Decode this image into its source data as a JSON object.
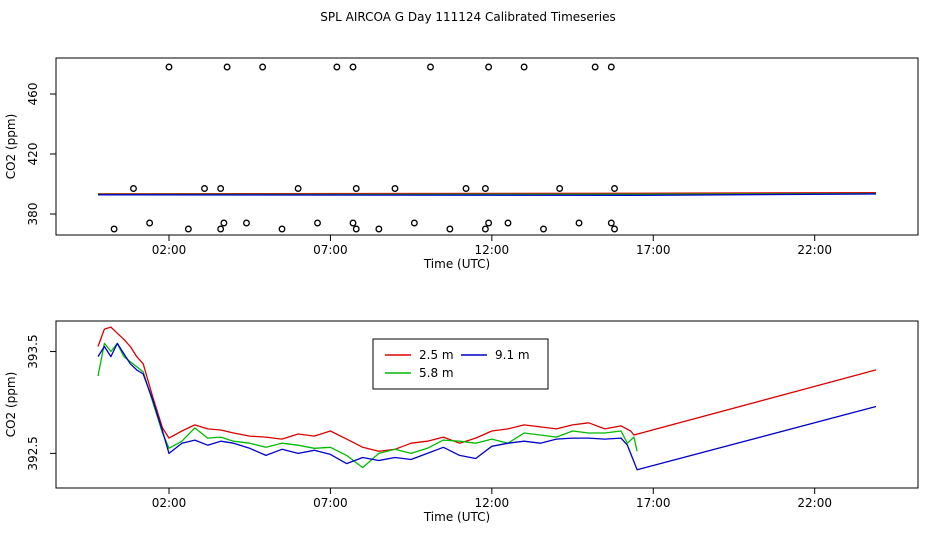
{
  "page_title": "SPL AIRCOA G  Day 111124  Calibrated Timeseries",
  "chart_data": [
    {
      "type": "scatter",
      "title": "",
      "xlabel": "Time (UTC)",
      "ylabel": "CO2 (ppm)",
      "xlim": [
        -1.5,
        25.2
      ],
      "ylim": [
        366,
        484
      ],
      "x_ticks": [
        2,
        7,
        12,
        17,
        22
      ],
      "x_tick_labels": [
        "02:00",
        "07:00",
        "12:00",
        "17:00",
        "22:00"
      ],
      "y_ticks": [
        380,
        420,
        460
      ],
      "y_tick_labels": [
        "380",
        "420",
        "460"
      ],
      "flat_series": [
        {
          "name": "2.5 m",
          "color": "#dd0000",
          "x": [
            -0.2,
            16.5,
            23.9
          ],
          "y": [
            393.5,
            393.8,
            394.2
          ]
        },
        {
          "name": "5.8 m",
          "color": "#00bb00",
          "x": [
            -0.2,
            16.5,
            23.9
          ],
          "y": [
            393.0,
            393.1,
            393.6
          ]
        },
        {
          "name": "9.1 m",
          "color": "#0000cc",
          "x": [
            -0.2,
            16.5,
            23.9
          ],
          "y": [
            392.8,
            392.5,
            393.4
          ]
        }
      ],
      "points": [
        {
          "x": 0.3,
          "y": 370
        },
        {
          "x": 0.9,
          "y": 397
        },
        {
          "x": 1.4,
          "y": 374
        },
        {
          "x": 2.0,
          "y": 478
        },
        {
          "x": 2.6,
          "y": 370
        },
        {
          "x": 3.1,
          "y": 397
        },
        {
          "x": 3.6,
          "y": 370
        },
        {
          "x": 3.6,
          "y": 397
        },
        {
          "x": 3.7,
          "y": 374
        },
        {
          "x": 3.8,
          "y": 478
        },
        {
          "x": 4.4,
          "y": 374
        },
        {
          "x": 4.9,
          "y": 478
        },
        {
          "x": 5.5,
          "y": 370
        },
        {
          "x": 6.0,
          "y": 397
        },
        {
          "x": 6.6,
          "y": 374
        },
        {
          "x": 7.2,
          "y": 478
        },
        {
          "x": 7.7,
          "y": 374
        },
        {
          "x": 7.8,
          "y": 370
        },
        {
          "x": 7.7,
          "y": 478
        },
        {
          "x": 7.8,
          "y": 397
        },
        {
          "x": 8.5,
          "y": 370
        },
        {
          "x": 9.0,
          "y": 397
        },
        {
          "x": 9.6,
          "y": 374
        },
        {
          "x": 10.1,
          "y": 478
        },
        {
          "x": 10.7,
          "y": 370
        },
        {
          "x": 11.2,
          "y": 397
        },
        {
          "x": 11.8,
          "y": 370
        },
        {
          "x": 11.8,
          "y": 397
        },
        {
          "x": 11.9,
          "y": 374
        },
        {
          "x": 11.9,
          "y": 478
        },
        {
          "x": 12.5,
          "y": 374
        },
        {
          "x": 13.0,
          "y": 478
        },
        {
          "x": 13.6,
          "y": 370
        },
        {
          "x": 14.1,
          "y": 397
        },
        {
          "x": 14.7,
          "y": 374
        },
        {
          "x": 15.2,
          "y": 478
        },
        {
          "x": 15.7,
          "y": 374
        },
        {
          "x": 15.8,
          "y": 370
        },
        {
          "x": 15.7,
          "y": 478
        },
        {
          "x": 15.8,
          "y": 397
        }
      ]
    },
    {
      "type": "line",
      "title": "",
      "xlabel": "Time (UTC)",
      "ylabel": "CO2 (ppm)",
      "xlim": [
        -1.5,
        25.2
      ],
      "ylim": [
        392.16,
        393.8
      ],
      "x_ticks": [
        2,
        7,
        12,
        17,
        22
      ],
      "x_tick_labels": [
        "02:00",
        "07:00",
        "12:00",
        "17:00",
        "22:00"
      ],
      "y_ticks": [
        392.5,
        393.5
      ],
      "y_tick_labels": [
        "392.5",
        "393.5"
      ],
      "legend": {
        "position": "top-center",
        "entries": [
          {
            "label": "2.5 m",
            "color": "#dd0000"
          },
          {
            "label": "9.1 m",
            "color": "#0000cc"
          },
          {
            "label": "5.8 m",
            "color": "#00bb00"
          }
        ]
      },
      "series": [
        {
          "name": "2.5 m",
          "color": "#dd0000",
          "x": [
            -0.2,
            0.0,
            0.2,
            0.4,
            0.6,
            0.8,
            1.0,
            1.2,
            1.5,
            1.8,
            2.0,
            2.4,
            2.8,
            3.2,
            3.6,
            4.0,
            4.5,
            5.0,
            5.5,
            6.0,
            6.5,
            7.0,
            7.5,
            8.0,
            8.5,
            9.0,
            9.5,
            10.0,
            10.5,
            11.0,
            11.5,
            12.0,
            12.5,
            13.0,
            13.5,
            14.0,
            14.5,
            15.0,
            15.5,
            16.0,
            16.3,
            16.4,
            23.9
          ],
          "y": [
            393.55,
            393.72,
            393.74,
            393.68,
            393.62,
            393.55,
            393.45,
            393.38,
            393.05,
            392.75,
            392.65,
            392.72,
            392.78,
            392.74,
            392.73,
            392.7,
            392.67,
            392.66,
            392.64,
            392.69,
            392.67,
            392.72,
            392.64,
            392.56,
            392.52,
            392.54,
            392.6,
            392.62,
            392.66,
            392.6,
            392.65,
            392.72,
            392.74,
            392.78,
            392.76,
            392.74,
            392.78,
            392.8,
            392.74,
            392.77,
            392.72,
            392.68,
            393.32
          ]
        },
        {
          "name": "5.8 m",
          "color": "#00bb00",
          "x": [
            -0.2,
            0.0,
            0.2,
            0.4,
            0.6,
            0.8,
            1.0,
            1.2,
            1.5,
            1.8,
            2.0,
            2.4,
            2.8,
            3.2,
            3.6,
            4.0,
            4.5,
            5.0,
            5.5,
            6.0,
            6.5,
            7.0,
            7.5,
            8.0,
            8.5,
            9.0,
            9.5,
            10.0,
            10.5,
            11.0,
            11.5,
            12.0,
            12.5,
            13.0,
            13.5,
            14.0,
            14.5,
            15.0,
            15.5,
            16.0,
            16.2,
            16.4,
            16.5
          ],
          "y": [
            393.26,
            393.58,
            393.5,
            393.58,
            393.45,
            393.4,
            393.35,
            393.3,
            393.0,
            392.7,
            392.55,
            392.62,
            392.75,
            392.65,
            392.66,
            392.62,
            392.6,
            392.56,
            392.6,
            392.58,
            392.55,
            392.56,
            392.48,
            392.36,
            392.5,
            392.54,
            392.5,
            392.55,
            392.63,
            392.62,
            392.6,
            392.64,
            392.6,
            392.7,
            392.68,
            392.66,
            392.72,
            392.7,
            392.7,
            392.72,
            392.6,
            392.66,
            392.52
          ]
        },
        {
          "name": "9.1 m",
          "color": "#0000cc",
          "x": [
            -0.2,
            0.0,
            0.2,
            0.4,
            0.6,
            0.8,
            1.0,
            1.2,
            1.5,
            1.8,
            2.0,
            2.4,
            2.8,
            3.2,
            3.6,
            4.0,
            4.5,
            5.0,
            5.5,
            6.0,
            6.5,
            7.0,
            7.5,
            8.0,
            8.5,
            9.0,
            9.5,
            10.0,
            10.5,
            11.0,
            11.5,
            12.0,
            12.5,
            13.0,
            13.5,
            14.0,
            14.5,
            15.0,
            15.5,
            16.0,
            16.2,
            16.5,
            23.9
          ],
          "y": [
            393.45,
            393.55,
            393.45,
            393.58,
            393.48,
            393.38,
            393.32,
            393.28,
            393.02,
            392.72,
            392.5,
            392.6,
            392.63,
            392.58,
            392.62,
            392.6,
            392.55,
            392.48,
            392.54,
            392.5,
            392.53,
            392.49,
            392.4,
            392.46,
            392.43,
            392.46,
            392.44,
            392.5,
            392.56,
            392.48,
            392.45,
            392.57,
            392.6,
            392.62,
            392.6,
            392.64,
            392.65,
            392.65,
            392.64,
            392.65,
            392.58,
            392.34,
            392.96
          ]
        }
      ]
    }
  ]
}
